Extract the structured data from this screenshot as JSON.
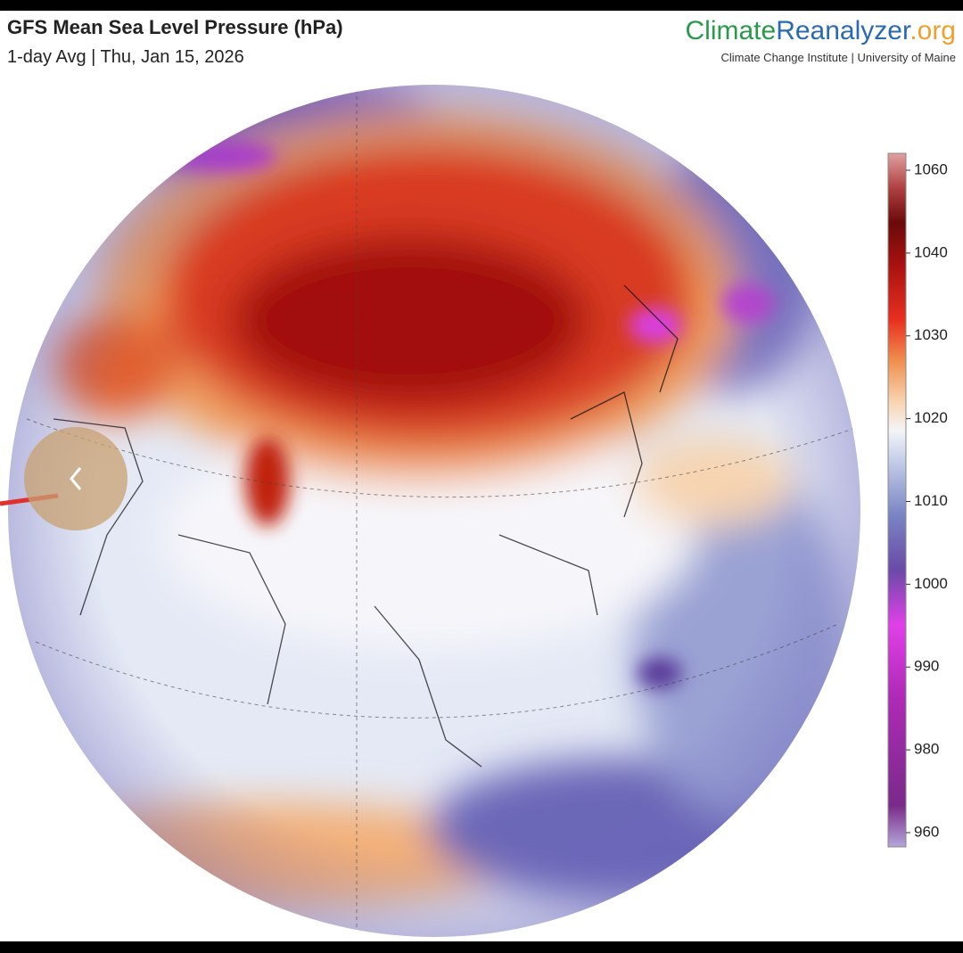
{
  "header": {
    "title": "GFS Mean Sea Level Pressure (hPa)",
    "subtitle": "1-day Avg | Thu, Jan 15, 2026"
  },
  "logo": {
    "parts": [
      "Climate",
      "Reanalyzer",
      ".org"
    ],
    "caption": "Climate Change Institute | University of Maine"
  },
  "colorbar": {
    "ticks": [
      960,
      980,
      990,
      1000,
      1010,
      1020,
      1030,
      1040,
      1060
    ]
  }
}
